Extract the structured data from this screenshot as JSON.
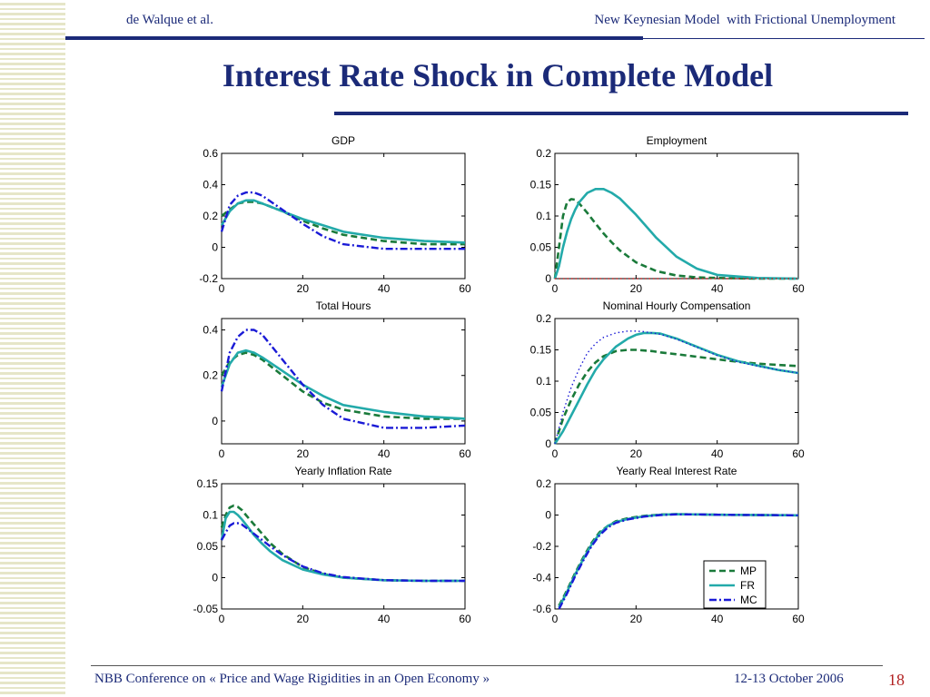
{
  "header": {
    "authors": "de Walque et al.",
    "paper_title": "New Keynesian Model  with Frictional Unemployment"
  },
  "slide": {
    "title": "Interest Rate Shock in Complete Model"
  },
  "footer": {
    "conference": "NBB Conference on « Price and Wage Rigidities in an Open Economy »",
    "date": "12-13 October 2006",
    "page": "18"
  },
  "colors": {
    "MP": "#1a7a3a",
    "FR": "#23aaaa",
    "MC": "#1a1ad6",
    "slide_blue": "#1b2a78",
    "page_red": "#b22222"
  },
  "chart_data": [
    {
      "type": "line",
      "title": "GDP",
      "xlim": [
        0,
        60
      ],
      "ylim": [
        -0.2,
        0.6
      ],
      "xticks": [
        "0",
        "20",
        "40",
        "60"
      ],
      "yticks": [
        "-0.2",
        "0",
        "0.2",
        "0.4",
        "0.6"
      ],
      "x": [
        0,
        2,
        4,
        6,
        8,
        10,
        15,
        20,
        25,
        30,
        40,
        50,
        60
      ],
      "series": [
        {
          "name": "MP",
          "style": "dash",
          "values": [
            0.2,
            0.24,
            0.28,
            0.29,
            0.29,
            0.28,
            0.23,
            0.17,
            0.12,
            0.08,
            0.04,
            0.02,
            0.02
          ]
        },
        {
          "name": "FR",
          "style": "solid",
          "values": [
            0.14,
            0.23,
            0.28,
            0.3,
            0.3,
            0.28,
            0.23,
            0.18,
            0.14,
            0.1,
            0.06,
            0.04,
            0.03
          ]
        },
        {
          "name": "MC",
          "style": "dashdot",
          "values": [
            0.1,
            0.27,
            0.33,
            0.35,
            0.35,
            0.33,
            0.24,
            0.15,
            0.07,
            0.02,
            -0.01,
            -0.01,
            -0.01
          ]
        }
      ]
    },
    {
      "type": "line",
      "title": "Employment",
      "xlim": [
        0,
        60
      ],
      "ylim": [
        0,
        0.2
      ],
      "xticks": [
        "0",
        "20",
        "40",
        "60"
      ],
      "yticks": [
        "0",
        "0.05",
        "0.1",
        "0.15",
        "0.2"
      ],
      "x": [
        0,
        1,
        2,
        3,
        4,
        5,
        6,
        8,
        10,
        12,
        14,
        16,
        20,
        25,
        30,
        35,
        40,
        50,
        60
      ],
      "series": [
        {
          "name": "MP",
          "style": "dash",
          "values": [
            0.0,
            0.05,
            0.1,
            0.122,
            0.127,
            0.126,
            0.12,
            0.105,
            0.088,
            0.072,
            0.058,
            0.045,
            0.026,
            0.012,
            0.005,
            0.002,
            0.001,
            0.0,
            0.0
          ]
        },
        {
          "name": "FR",
          "style": "solid",
          "values": [
            0.0,
            0.02,
            0.05,
            0.075,
            0.095,
            0.11,
            0.122,
            0.137,
            0.143,
            0.143,
            0.137,
            0.128,
            0.102,
            0.065,
            0.035,
            0.016,
            0.006,
            0.001,
            0.0
          ]
        },
        {
          "name": "MC",
          "style": "dot",
          "values": [
            0,
            0,
            0,
            0,
            0,
            0,
            0,
            0,
            0,
            0,
            0,
            0,
            0,
            0,
            0,
            0,
            0,
            0,
            0
          ]
        }
      ]
    },
    {
      "type": "line",
      "title": "Total Hours",
      "xlim": [
        0,
        60
      ],
      "ylim": [
        -0.1,
        0.45
      ],
      "xticks": [
        "0",
        "20",
        "40",
        "60"
      ],
      "yticks": [
        "0",
        "0.2",
        "0.4"
      ],
      "x": [
        0,
        2,
        4,
        6,
        8,
        10,
        15,
        20,
        25,
        30,
        40,
        50,
        60
      ],
      "series": [
        {
          "name": "MP",
          "style": "dash",
          "values": [
            0.2,
            0.26,
            0.29,
            0.3,
            0.29,
            0.27,
            0.2,
            0.13,
            0.08,
            0.05,
            0.02,
            0.01,
            0.01
          ]
        },
        {
          "name": "FR",
          "style": "solid",
          "values": [
            0.15,
            0.25,
            0.3,
            0.31,
            0.3,
            0.28,
            0.22,
            0.16,
            0.11,
            0.07,
            0.04,
            0.02,
            0.01
          ]
        },
        {
          "name": "MC",
          "style": "dashdot",
          "values": [
            0.13,
            0.3,
            0.37,
            0.4,
            0.4,
            0.38,
            0.27,
            0.16,
            0.07,
            0.01,
            -0.03,
            -0.03,
            -0.02
          ]
        }
      ]
    },
    {
      "type": "line",
      "title": "Nominal Hourly Compensation",
      "xlim": [
        0,
        60
      ],
      "ylim": [
        0,
        0.2
      ],
      "xticks": [
        "0",
        "20",
        "40",
        "60"
      ],
      "yticks": [
        "0",
        "0.05",
        "0.1",
        "0.15",
        "0.2"
      ],
      "x": [
        0,
        2,
        4,
        6,
        8,
        10,
        12,
        15,
        18,
        20,
        22,
        24,
        26,
        30,
        35,
        40,
        45,
        50,
        55,
        60
      ],
      "series": [
        {
          "name": "MP",
          "style": "dash",
          "values": [
            0.0,
            0.04,
            0.07,
            0.095,
            0.115,
            0.13,
            0.14,
            0.148,
            0.15,
            0.15,
            0.149,
            0.148,
            0.146,
            0.143,
            0.139,
            0.135,
            0.131,
            0.128,
            0.126,
            0.124
          ]
        },
        {
          "name": "FR",
          "style": "solid",
          "values": [
            0.0,
            0.02,
            0.045,
            0.07,
            0.095,
            0.118,
            0.135,
            0.155,
            0.168,
            0.174,
            0.177,
            0.177,
            0.176,
            0.168,
            0.155,
            0.142,
            0.132,
            0.125,
            0.118,
            0.113
          ]
        },
        {
          "name": "MC",
          "style": "dot",
          "values": [
            0.0,
            0.05,
            0.09,
            0.12,
            0.145,
            0.16,
            0.17,
            0.177,
            0.18,
            0.18,
            0.179,
            0.177,
            0.175,
            0.167,
            0.154,
            0.141,
            0.131,
            0.124,
            0.118,
            0.113
          ]
        }
      ]
    },
    {
      "type": "line",
      "title": "Yearly Inflation Rate",
      "xlim": [
        0,
        60
      ],
      "ylim": [
        -0.05,
        0.15
      ],
      "xticks": [
        "0",
        "20",
        "40",
        "60"
      ],
      "yticks": [
        "-0.05",
        "0",
        "0.05",
        "0.1",
        "0.15"
      ],
      "x": [
        0,
        1,
        2,
        3,
        4,
        5,
        6,
        8,
        10,
        12,
        15,
        20,
        25,
        30,
        40,
        50,
        60
      ],
      "series": [
        {
          "name": "MP",
          "style": "dash",
          "values": [
            0.08,
            0.1,
            0.112,
            0.115,
            0.113,
            0.108,
            0.1,
            0.085,
            0.07,
            0.055,
            0.038,
            0.017,
            0.006,
            0.0,
            -0.004,
            -0.005,
            -0.005
          ]
        },
        {
          "name": "FR",
          "style": "solid",
          "values": [
            0.06,
            0.095,
            0.105,
            0.105,
            0.1,
            0.093,
            0.085,
            0.068,
            0.054,
            0.042,
            0.028,
            0.013,
            0.005,
            0.0,
            -0.004,
            -0.005,
            -0.005
          ]
        },
        {
          "name": "MC",
          "style": "dashdot",
          "values": [
            0.06,
            0.072,
            0.083,
            0.087,
            0.087,
            0.085,
            0.08,
            0.07,
            0.06,
            0.05,
            0.036,
            0.018,
            0.007,
            0.001,
            -0.004,
            -0.005,
            -0.005
          ]
        }
      ]
    },
    {
      "type": "line",
      "title": "Yearly Real Interest Rate",
      "xlim": [
        0,
        60
      ],
      "ylim": [
        -0.6,
        0.2
      ],
      "xticks": [
        "0",
        "20",
        "40",
        "60"
      ],
      "yticks": [
        "-0.6",
        "-0.4",
        "-0.2",
        "0",
        "0.2"
      ],
      "x": [
        1,
        3,
        5,
        7,
        9,
        11,
        13,
        15,
        18,
        22,
        26,
        30,
        35,
        40,
        50,
        60
      ],
      "series": [
        {
          "name": "MP",
          "style": "dash",
          "values": [
            -0.58,
            -0.48,
            -0.37,
            -0.27,
            -0.18,
            -0.11,
            -0.07,
            -0.04,
            -0.02,
            -0.005,
            0.003,
            0.005,
            0.004,
            0.002,
            0.0,
            -0.002
          ]
        },
        {
          "name": "FR",
          "style": "solid",
          "values": [
            -0.59,
            -0.49,
            -0.38,
            -0.28,
            -0.19,
            -0.12,
            -0.07,
            -0.045,
            -0.025,
            -0.008,
            0.002,
            0.005,
            0.004,
            0.002,
            0.0,
            -0.002
          ]
        },
        {
          "name": "MC",
          "style": "dashdot",
          "values": [
            -0.6,
            -0.5,
            -0.39,
            -0.29,
            -0.2,
            -0.13,
            -0.08,
            -0.05,
            -0.028,
            -0.01,
            0.0,
            0.004,
            0.004,
            0.002,
            0.0,
            -0.002
          ]
        }
      ],
      "legend": {
        "placement": "bottom-right",
        "entries": [
          "MP",
          "FR",
          "MC"
        ]
      }
    }
  ]
}
